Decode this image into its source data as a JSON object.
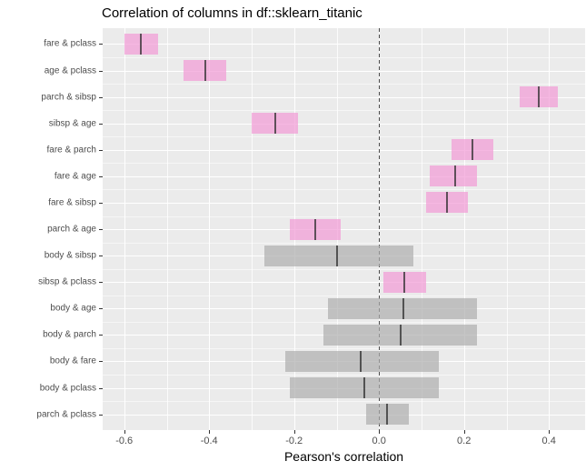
{
  "title": "Correlation of columns in df::sklearn_titanic",
  "chart_data": {
    "type": "bar",
    "subtype": "horizontal crossbar (correlation estimate with confidence interval)",
    "title": "Correlation of columns in df::sklearn_titanic",
    "xlabel": "Pearson's correlation",
    "ylabel": "",
    "legend": "none",
    "grid": "on",
    "categories": [
      "fare & pclass",
      "age & pclass",
      "parch & sibsp",
      "sibsp & age",
      "fare & parch",
      "fare & age",
      "fare & sibsp",
      "parch & age",
      "body & sibsp",
      "sibsp & pclass",
      "body & age",
      "body & parch",
      "body & fare",
      "body & pclass",
      "parch & pclass"
    ],
    "series": [
      {
        "name": "ci_low",
        "values": [
          -0.6,
          -0.46,
          0.33,
          -0.3,
          0.17,
          0.12,
          0.11,
          -0.21,
          -0.27,
          0.01,
          -0.12,
          -0.13,
          -0.22,
          -0.21,
          -0.03
        ]
      },
      {
        "name": "estimate",
        "values": [
          -0.56,
          -0.41,
          0.375,
          -0.244,
          0.221,
          0.18,
          0.16,
          -0.15,
          -0.1,
          0.06,
          0.058,
          0.051,
          -0.043,
          -0.034,
          0.018
        ]
      },
      {
        "name": "ci_high",
        "values": [
          -0.52,
          -0.36,
          0.42,
          -0.19,
          0.27,
          0.23,
          0.21,
          -0.09,
          0.08,
          0.11,
          0.23,
          0.23,
          0.14,
          0.14,
          0.07
        ]
      }
    ],
    "significant": [
      true,
      true,
      true,
      true,
      true,
      true,
      true,
      true,
      false,
      true,
      false,
      false,
      false,
      false,
      false
    ],
    "xticks": {
      "values": [
        -0.6,
        -0.4,
        -0.2,
        0.0,
        0.2,
        0.4
      ],
      "labels": [
        "-0.6",
        "-0.4",
        "-0.2",
        "0.0",
        "0.2",
        "0.4"
      ]
    },
    "xlim": [
      -0.6507,
      0.4851
    ],
    "zero_line": 0.0,
    "colors": {
      "significant_fill": "#F29AD6",
      "nonsignificant_fill": "#AEAEAE",
      "bar_alpha": 0.7,
      "center_line": "#2D2D2D",
      "panel_bg": "#EBEBEB",
      "gridline": "#FFFFFF",
      "axis_text": "#4D4D4D",
      "zero_dash": "#4D4D4D"
    }
  }
}
